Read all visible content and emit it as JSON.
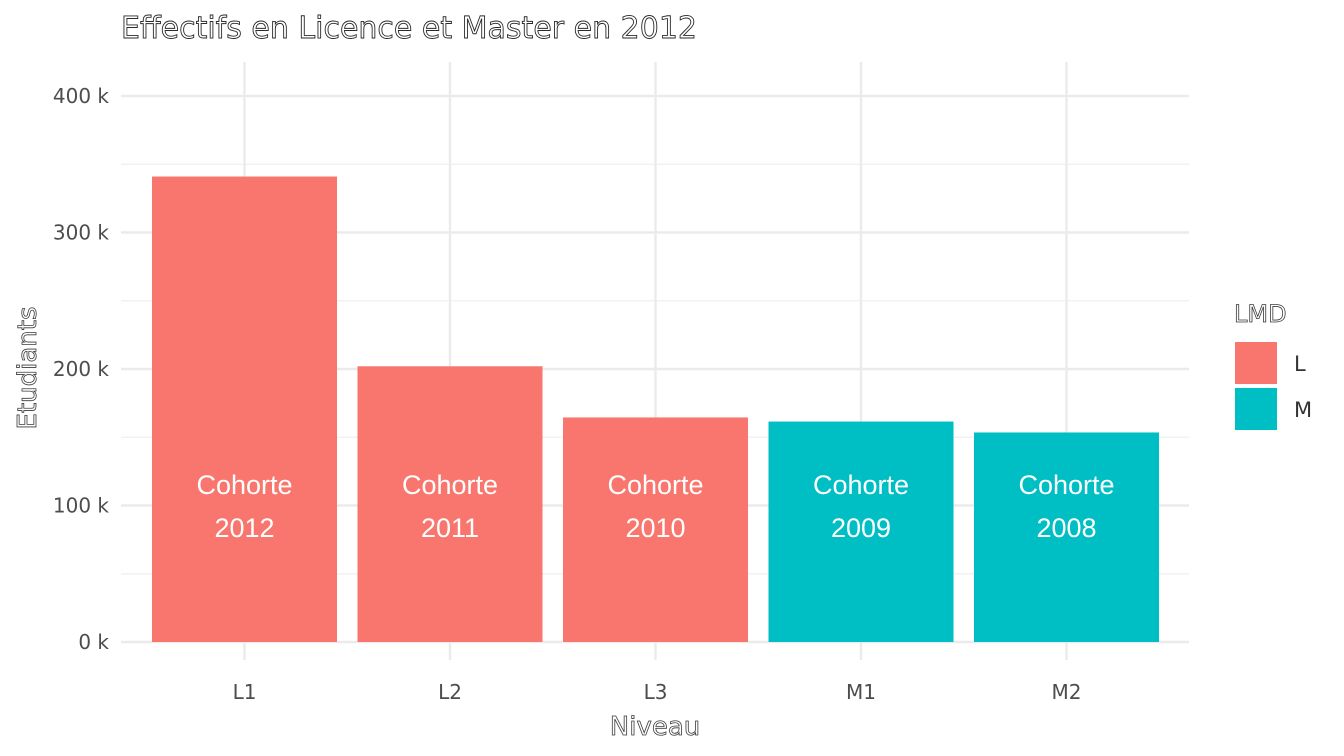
{
  "chart_data": {
    "type": "bar",
    "title": "Effectifs en Licence et Master en 2012",
    "xlabel": "Niveau",
    "ylabel": "Etudiants",
    "categories": [
      "L1",
      "L2",
      "L3",
      "M1",
      "M2"
    ],
    "values": [
      341000,
      202000,
      164500,
      161500,
      153500
    ],
    "bar_labels": [
      [
        "Cohorte",
        "2012"
      ],
      [
        "Cohorte",
        "2011"
      ],
      [
        "Cohorte",
        "2010"
      ],
      [
        "Cohorte",
        "2009"
      ],
      [
        "Cohorte",
        "2008"
      ]
    ],
    "group": [
      "L",
      "L",
      "L",
      "M",
      "M"
    ],
    "ylim": [
      0,
      400000
    ],
    "y_ticks": [
      0,
      100000,
      200000,
      300000,
      400000
    ],
    "y_tick_labels": [
      "0 k",
      "100 k",
      "200 k",
      "300 k",
      "400 k"
    ],
    "grid": true,
    "legend": {
      "title": "LMD",
      "position": "right",
      "entries": [
        {
          "label": "L",
          "color": "#F8766D"
        },
        {
          "label": "M",
          "color": "#00BFC4"
        }
      ]
    }
  }
}
